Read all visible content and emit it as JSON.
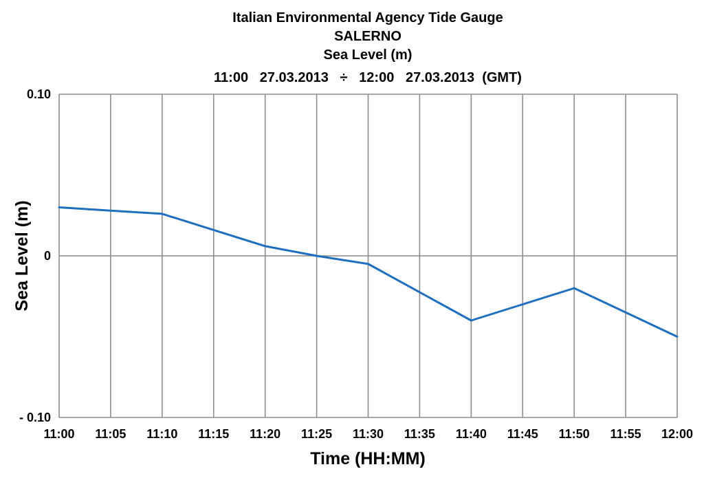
{
  "chart_data": {
    "type": "line",
    "title_lines": [
      "Italian Environmental Agency Tide Gauge",
      "SALERNO",
      "Sea Level (m)",
      "11:00   27.03.2013   ÷   12:00   27.03.2013  (GMT)"
    ],
    "xlabel": "Time (HH:MM)",
    "ylabel": "Sea Level (m)",
    "categories": [
      "11:00",
      "11:05",
      "11:10",
      "11:15",
      "11:20",
      "11:25",
      "11:30",
      "11:35",
      "11:40",
      "11:45",
      "11:50",
      "11:55",
      "12:00"
    ],
    "y_ticks": [
      {
        "value": 0.1,
        "label": "0.10"
      },
      {
        "value": 0,
        "label": "0"
      },
      {
        "value": -0.1,
        "label": "- 0.10"
      }
    ],
    "ylim": [
      -0.1,
      0.1
    ],
    "grid": true,
    "series": [
      {
        "x": [
          "11:00",
          "11:05",
          "11:10",
          "11:15",
          "11:20",
          "11:25",
          "11:30",
          "11:40",
          "11:45",
          "11:50",
          "11:55",
          "12:00"
        ],
        "values": [
          0.03,
          0.028,
          0.026,
          0.016,
          0.006,
          0.0,
          -0.005,
          -0.04,
          -0.03,
          -0.02,
          -0.035,
          -0.05
        ],
        "color": "#1f6fbf"
      }
    ],
    "colors": {
      "grid": "#8c8c8c",
      "axis": "#808080",
      "line": "#1f6fbf"
    }
  }
}
